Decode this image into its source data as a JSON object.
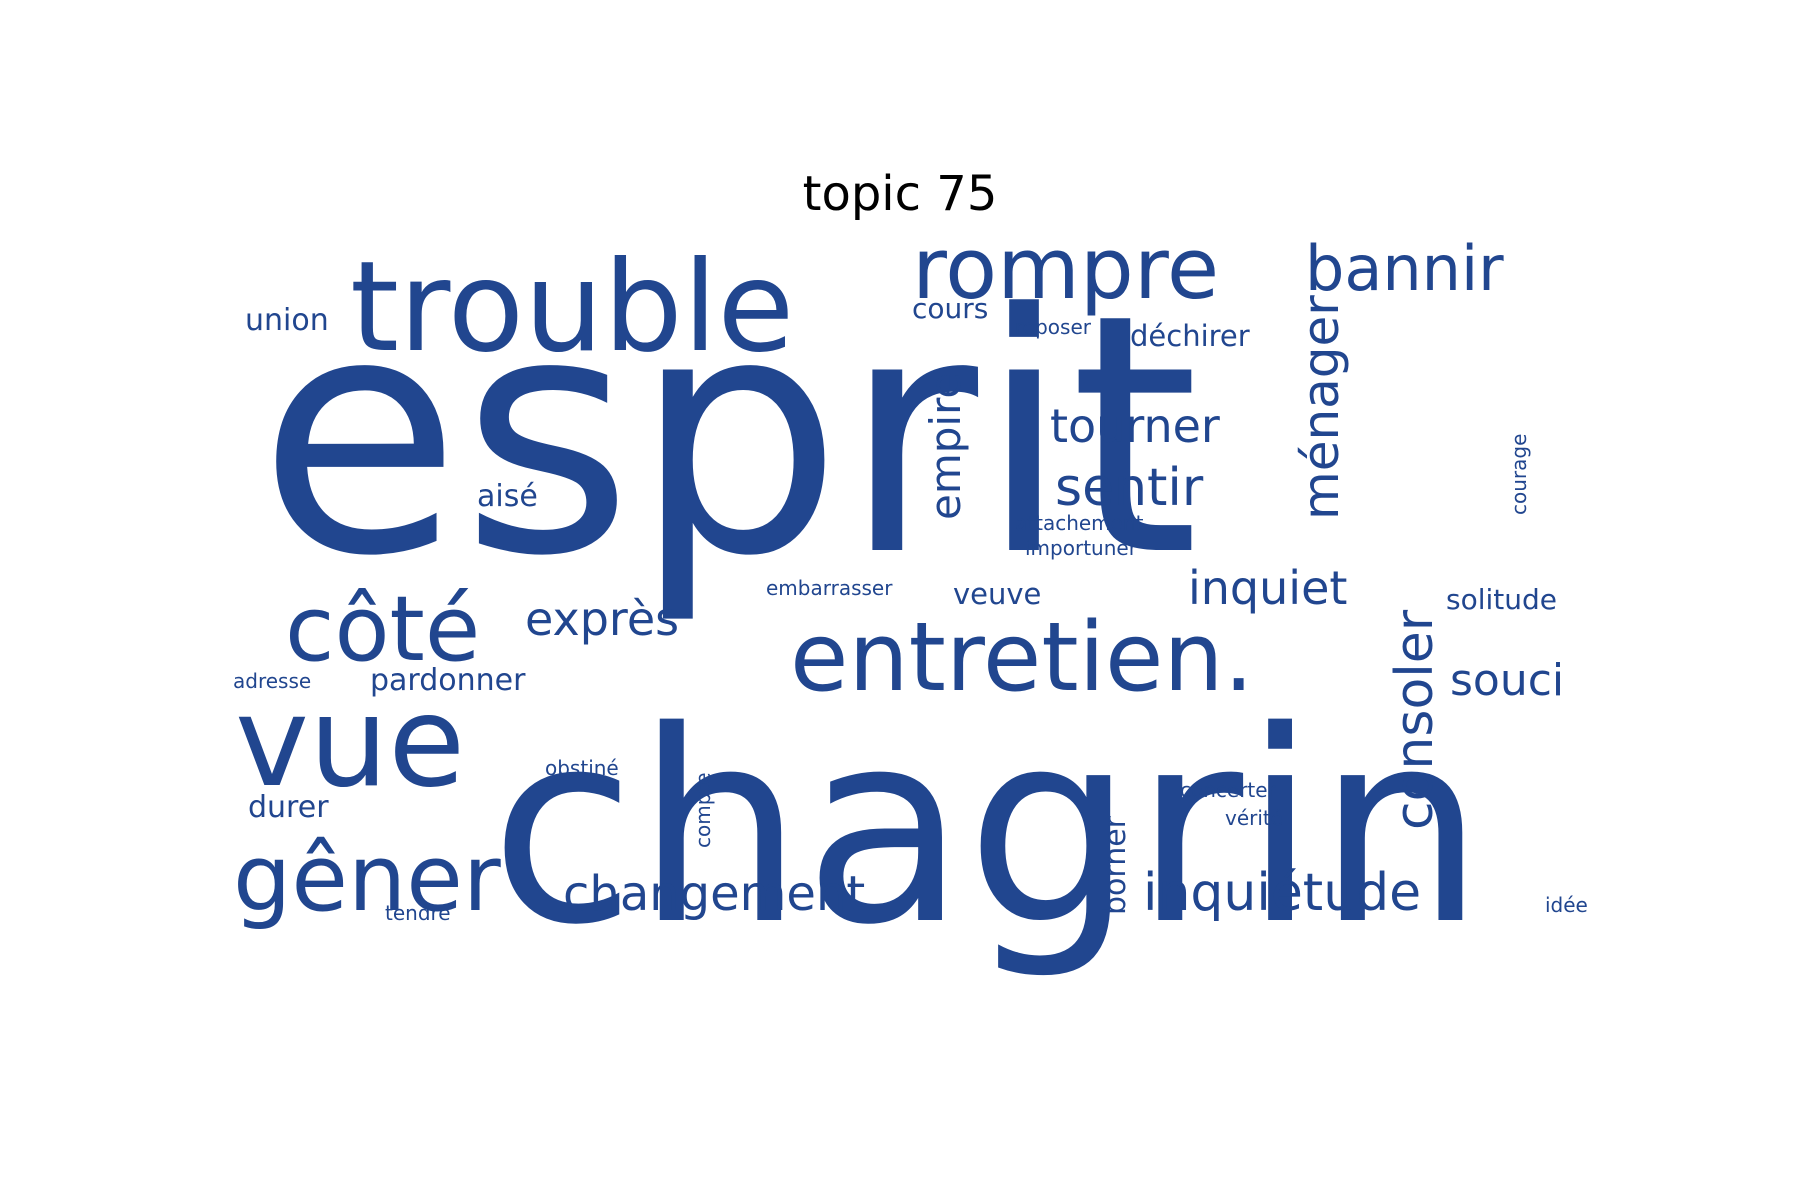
{
  "title": "topic 75",
  "color": "#21468f",
  "words": [
    {
      "text": "esprit",
      "weight": 1.0
    },
    {
      "text": "chagrin",
      "weight": 0.8
    },
    {
      "text": "trouble",
      "weight": 0.5
    },
    {
      "text": "rompre",
      "weight": 0.34
    },
    {
      "text": "entretien.",
      "weight": 0.4
    },
    {
      "text": "côté",
      "weight": 0.39
    },
    {
      "text": "vue",
      "weight": 0.53
    },
    {
      "text": "gêner",
      "weight": 0.41
    },
    {
      "text": "bannir",
      "weight": 0.26
    },
    {
      "text": "ménager",
      "weight": 0.2
    },
    {
      "text": "consoler",
      "weight": 0.21
    },
    {
      "text": "empire",
      "weight": 0.17
    },
    {
      "text": "tourner",
      "weight": 0.18
    },
    {
      "text": "sentir",
      "weight": 0.21
    },
    {
      "text": "inquiet",
      "weight": 0.2
    },
    {
      "text": "exprès",
      "weight": 0.2
    },
    {
      "text": "changement",
      "weight": 0.2
    },
    {
      "text": "inquiétude",
      "weight": 0.21
    },
    {
      "text": "souci",
      "weight": 0.18
    },
    {
      "text": "union",
      "weight": 0.12
    },
    {
      "text": "cours",
      "weight": 0.11
    },
    {
      "text": "reposer",
      "weight": 0.08
    },
    {
      "text": "déchirer",
      "weight": 0.12
    },
    {
      "text": "aisé",
      "weight": 0.12
    },
    {
      "text": "courage",
      "weight": 0.07
    },
    {
      "text": "attachement",
      "weight": 0.08
    },
    {
      "text": "importuner",
      "weight": 0.08
    },
    {
      "text": "embarrasser",
      "weight": 0.08
    },
    {
      "text": "veuve",
      "weight": 0.12
    },
    {
      "text": "solitude",
      "weight": 0.12
    },
    {
      "text": "adresse",
      "weight": 0.08
    },
    {
      "text": "pardonner",
      "weight": 0.13
    },
    {
      "text": "obstiné",
      "weight": 0.08
    },
    {
      "text": "compte",
      "weight": 0.07
    },
    {
      "text": "durer",
      "weight": 0.13
    },
    {
      "text": "borner",
      "weight": 0.13
    },
    {
      "text": "concerter",
      "weight": 0.08
    },
    {
      "text": "vérité",
      "weight": 0.08
    },
    {
      "text": "tendre",
      "weight": 0.08
    },
    {
      "text": "idée",
      "weight": 0.08
    }
  ]
}
